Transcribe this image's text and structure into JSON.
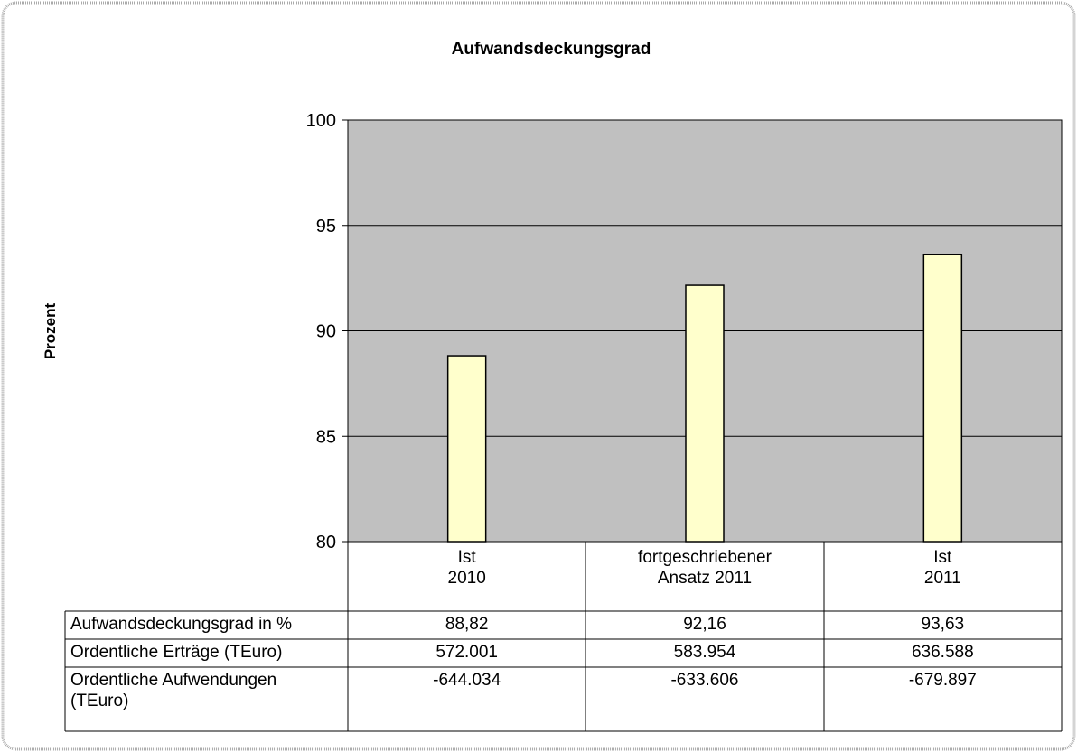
{
  "chart_data": {
    "type": "bar",
    "title": "Aufwandsdeckungsgrad",
    "y_label": "Prozent",
    "categories": [
      "Ist\n2010",
      "fortgeschriebener\nAnsatz 2011",
      "Ist\n2011"
    ],
    "values": [
      88.82,
      92.16,
      93.63
    ],
    "value_labels": [
      "88,82",
      "92,16",
      "93,63"
    ],
    "color": "#ffffcc",
    "ylim": [
      80,
      100
    ],
    "yticks": [
      80,
      85,
      90,
      95,
      100
    ],
    "grid": true
  },
  "table": {
    "rows": [
      {
        "label": "Aufwandsdeckungsgrad in %"
      },
      {
        "label": "Ordentliche Erträge (TEuro)",
        "cells": [
          "572.001",
          "583.954",
          "636.588"
        ]
      },
      {
        "label": "Ordentliche Aufwendungen\n(TEuro)",
        "cells": [
          "-644.034",
          "-633.606",
          "-679.897"
        ]
      }
    ]
  }
}
